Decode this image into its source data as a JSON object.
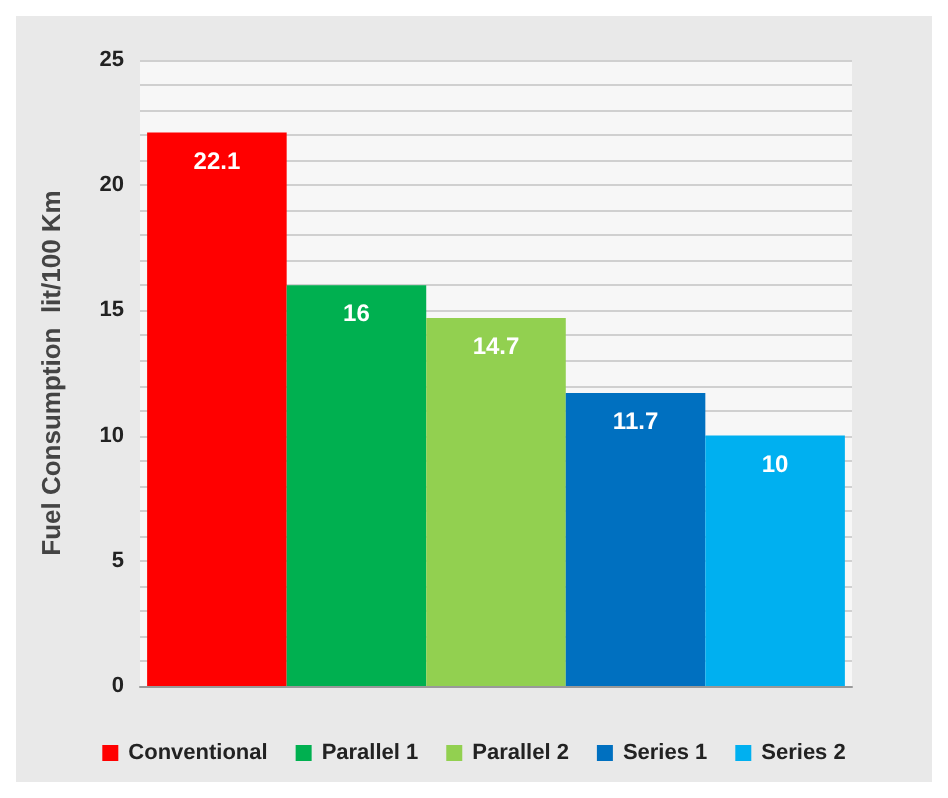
{
  "chart_data": {
    "type": "bar",
    "ylabel": "Fuel Consumption  lit/100 Km",
    "categories": [
      null
    ],
    "series": [
      {
        "name": "Conventional",
        "color": "#ff0000",
        "values": [
          22.1
        ]
      },
      {
        "name": "Parallel 1",
        "color": "#00b050",
        "values": [
          16
        ]
      },
      {
        "name": "Parallel 2",
        "color": "#92d050",
        "values": [
          14.7
        ]
      },
      {
        "name": "Series 1",
        "color": "#0070c0",
        "values": [
          11.7
        ]
      },
      {
        "name": "Series 2",
        "color": "#00b0f0",
        "values": [
          10
        ]
      }
    ],
    "ylim": [
      0,
      25
    ],
    "yticks": [
      0,
      {
        "value": 1,
        "label": null
      },
      {
        "value": 2,
        "label": null
      },
      {
        "value": 3,
        "label": null
      },
      {
        "value": 4,
        "label": null
      },
      5,
      {
        "value": 6,
        "label": null
      },
      {
        "value": 7,
        "label": null
      },
      {
        "value": 8,
        "label": null
      },
      {
        "value": 9,
        "label": null
      },
      10,
      {
        "value": 11,
        "label": null
      },
      {
        "value": 12,
        "label": null
      },
      {
        "value": 13,
        "label": null
      },
      {
        "value": 14,
        "label": null
      },
      15,
      {
        "value": 16,
        "label": null
      },
      {
        "value": 17,
        "label": null
      },
      {
        "value": 18,
        "label": null
      },
      {
        "value": 19,
        "label": null
      },
      20,
      {
        "value": 21,
        "label": null
      },
      {
        "value": 22,
        "label": null
      },
      {
        "value": 23,
        "label": null
      },
      {
        "value": 24,
        "label": null
      },
      25
    ],
    "grid": true,
    "legend": "bottom",
    "data_labels": true
  }
}
